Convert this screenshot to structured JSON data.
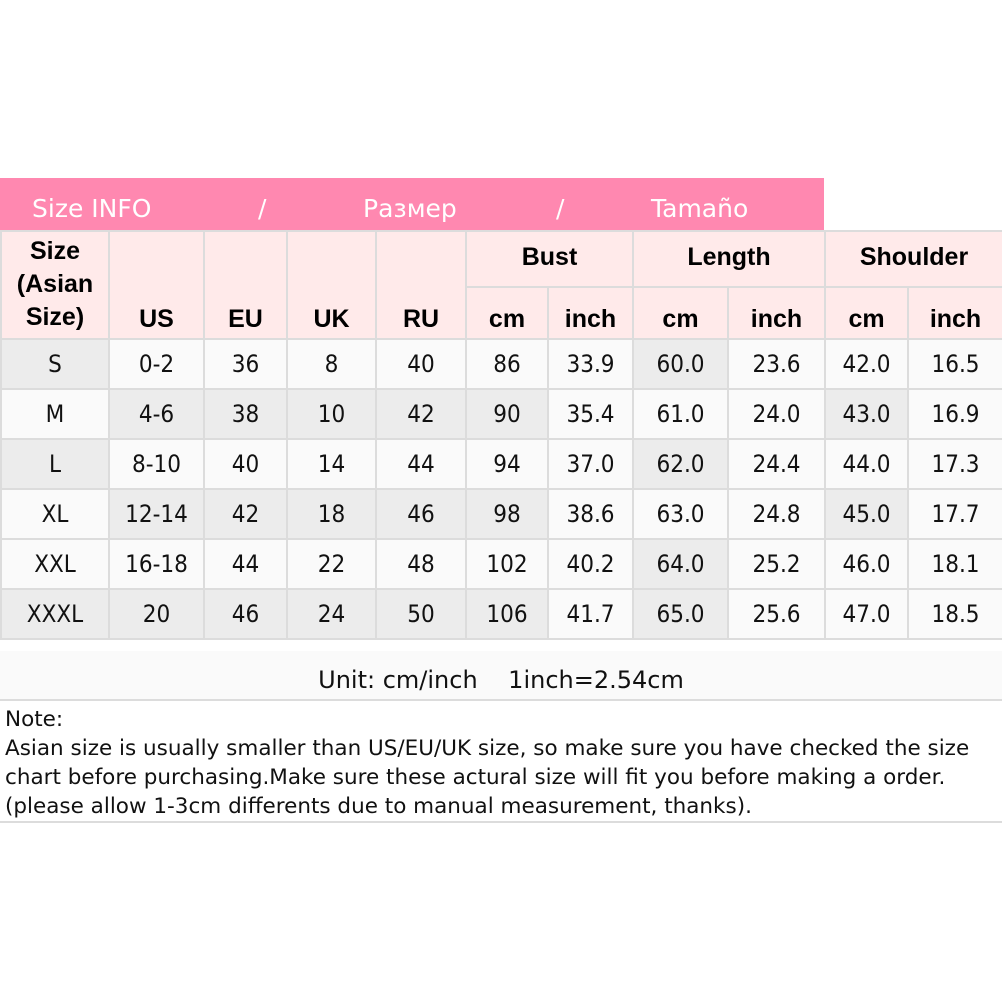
{
  "banner": {
    "parts": [
      "Size INFO",
      "/",
      "Размер",
      "/",
      "Tamaño"
    ],
    "color": "#ff88b0"
  },
  "headers": {
    "size": "Size (Asian Size)",
    "us": "US",
    "eu": "EU",
    "uk": "UK",
    "ru": "RU",
    "bust": "Bust",
    "length": "Length",
    "shoulder": "Shoulder",
    "cm": "cm",
    "inch": "inch"
  },
  "rows": [
    [
      "S",
      "0-2",
      "36",
      "8",
      "40",
      "86",
      "33.9",
      "60.0",
      "23.6",
      "42.0",
      "16.5"
    ],
    [
      "M",
      "4-6",
      "38",
      "10",
      "42",
      "90",
      "35.4",
      "61.0",
      "24.0",
      "43.0",
      "16.9"
    ],
    [
      "L",
      "8-10",
      "40",
      "14",
      "44",
      "94",
      "37.0",
      "62.0",
      "24.4",
      "44.0",
      "17.3"
    ],
    [
      "XL",
      "12-14",
      "42",
      "18",
      "46",
      "98",
      "38.6",
      "63.0",
      "24.8",
      "45.0",
      "17.7"
    ],
    [
      "XXL",
      "16-18",
      "44",
      "22",
      "48",
      "102",
      "40.2",
      "64.0",
      "25.2",
      "46.0",
      "18.1"
    ],
    [
      "XXXL",
      "20",
      "46",
      "24",
      "50",
      "106",
      "41.7",
      "65.0",
      "25.6",
      "47.0",
      "18.5"
    ]
  ],
  "unit": "Unit: cm/inch    1inch=2.54cm",
  "note": {
    "title": "Note:",
    "text": "Asian size is usually smaller than US/EU/UK size, so make sure you have checked the size chart before purchasing.Make sure these actural size will fit you before making a order.(please allow 1-3cm differents due to manual measurement, thanks)."
  }
}
